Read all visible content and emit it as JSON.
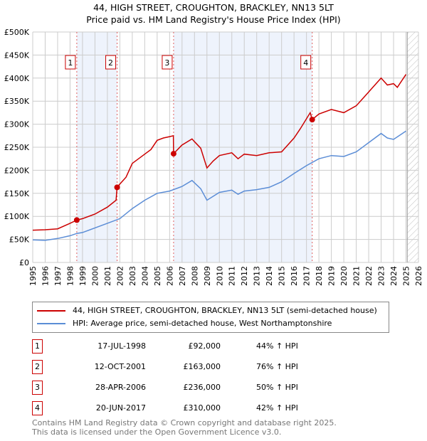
{
  "chart_data": {
    "type": "line",
    "title": "44, HIGH STREET, CROUGHTON, BRACKLEY, NN13 5LT",
    "subtitle": "Price paid vs. HM Land Registry's House Price Index (HPI)",
    "xlim": [
      1995,
      2026
    ],
    "ylim": [
      0,
      500000
    ],
    "x_ticks": [
      "1995",
      "1996",
      "1997",
      "1998",
      "1999",
      "2000",
      "2001",
      "2002",
      "2003",
      "2004",
      "2005",
      "2006",
      "2007",
      "2008",
      "2009",
      "2010",
      "2011",
      "2012",
      "2013",
      "2014",
      "2015",
      "2016",
      "2017",
      "2018",
      "2019",
      "2020",
      "2021",
      "2022",
      "2023",
      "2024",
      "2025",
      "2026"
    ],
    "y_ticks": [
      {
        "v": 0,
        "l": "£0"
      },
      {
        "v": 50000,
        "l": "£50K"
      },
      {
        "v": 100000,
        "l": "£100K"
      },
      {
        "v": 150000,
        "l": "£150K"
      },
      {
        "v": 200000,
        "l": "£200K"
      },
      {
        "v": 250000,
        "l": "£250K"
      },
      {
        "v": 300000,
        "l": "£300K"
      },
      {
        "v": 350000,
        "l": "£350K"
      },
      {
        "v": 400000,
        "l": "£400K"
      },
      {
        "v": 450000,
        "l": "£450K"
      },
      {
        "v": 500000,
        "l": "£500K"
      }
    ],
    "grid": true,
    "forecast_start": 2025.1,
    "series": [
      {
        "name": "44, HIGH STREET, CROUGHTON, BRACKLEY, NN13 5LT (semi-detached house)",
        "color": "#cc0000",
        "x": [
          1995,
          1996,
          1997,
          1998,
          1998.54,
          1999,
          2000,
          2001,
          2001.7,
          2001.78,
          2002,
          2002.5,
          2003,
          2004,
          2004.5,
          2005,
          2005.5,
          2006,
          2006.3,
          2006.32,
          2007,
          2007.8,
          2008,
          2008.5,
          2009,
          2009.5,
          2010,
          2011,
          2011.5,
          2012,
          2013,
          2014,
          2015,
          2016,
          2016.5,
          2017.3,
          2017.46,
          2018,
          2019,
          2020,
          2021,
          2022,
          2023,
          2023.5,
          2024,
          2024.3,
          2025
        ],
        "y": [
          70000,
          71000,
          73000,
          85000,
          92000,
          95000,
          105000,
          120000,
          135000,
          163000,
          170000,
          185000,
          215000,
          235000,
          245000,
          265000,
          270000,
          273000,
          275000,
          236000,
          255000,
          268000,
          262000,
          248000,
          205000,
          220000,
          232000,
          238000,
          225000,
          235000,
          232000,
          238000,
          240000,
          270000,
          290000,
          325000,
          310000,
          322000,
          332000,
          325000,
          340000,
          370000,
          400000,
          385000,
          388000,
          380000,
          408000
        ]
      },
      {
        "name": "HPI: Average price, semi-detached house, West Northamptonshire",
        "color": "#5b8dd6",
        "x": [
          1995,
          1996,
          1997,
          1998,
          1998.54,
          1999,
          2000,
          2001,
          2002,
          2003,
          2004,
          2005,
          2006,
          2007,
          2007.8,
          2008.5,
          2009,
          2010,
          2011,
          2011.5,
          2012,
          2013,
          2014,
          2015,
          2016,
          2017,
          2018,
          2019,
          2020,
          2021,
          2022,
          2023,
          2023.5,
          2024,
          2025
        ],
        "y": [
          49000,
          48000,
          52000,
          58000,
          63000,
          65000,
          75000,
          85000,
          95000,
          117000,
          135000,
          150000,
          155000,
          165000,
          178000,
          160000,
          135000,
          152000,
          157000,
          148000,
          155000,
          158000,
          163000,
          175000,
          193000,
          210000,
          225000,
          232000,
          230000,
          240000,
          260000,
          280000,
          270000,
          267000,
          285000
        ]
      }
    ],
    "sales": [
      {
        "n": "1",
        "x": 1998.54,
        "date": "17-JUL-1998",
        "price_value": 92000,
        "price": "£92,000",
        "hpi": "44% ↑ HPI"
      },
      {
        "n": "2",
        "x": 2001.78,
        "date": "12-OCT-2001",
        "price_value": 163000,
        "price": "£163,000",
        "hpi": "76% ↑ HPI"
      },
      {
        "n": "3",
        "x": 2006.32,
        "date": "28-APR-2006",
        "price_value": 236000,
        "price": "£236,000",
        "hpi": "50% ↑ HPI"
      },
      {
        "n": "4",
        "x": 2017.46,
        "date": "20-JUN-2017",
        "price_value": 310000,
        "price": "£310,000",
        "hpi": "42% ↑ HPI"
      }
    ]
  },
  "footer": {
    "line1": "Contains HM Land Registry data © Crown copyright and database right 2025.",
    "line2": "This data is licensed under the Open Government Licence v3.0."
  }
}
